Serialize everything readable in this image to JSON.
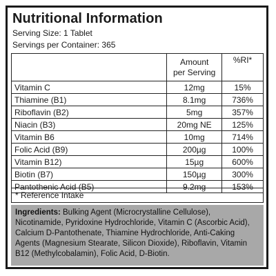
{
  "title": "Nutritional Information",
  "serving_size": "Serving Size: 1 Tablet",
  "servings_per_container": "Servings per Container: 365",
  "table": {
    "headers": {
      "amount_line1": "Amount",
      "amount_line2": "per Serving",
      "ri": "%RI*"
    },
    "rows": [
      {
        "name": "Vitamin C",
        "amount": "12mg",
        "ri": "15%"
      },
      {
        "name": "Thiamine (B1)",
        "amount": "8.1mg",
        "ri": "736%"
      },
      {
        "name": "Riboflavin (B2)",
        "amount": "5mg",
        "ri": "357%"
      },
      {
        "name": "Niacin (B3)",
        "amount": "20mg NE",
        "ri": "125%"
      },
      {
        "name": "Vitamin B6",
        "amount": "10mg",
        "ri": "714%"
      },
      {
        "name": "Folic Acid (B9)",
        "amount": "200µg",
        "ri": "100%"
      },
      {
        "name": "Vitamin B12)",
        "amount": "15µg",
        "ri": "600%"
      },
      {
        "name": "Biotin (B7)",
        "amount": "150µg",
        "ri": "300%"
      },
      {
        "name": "Pantothenic Acid (B5)",
        "amount": "9.2mg",
        "ri": "153%"
      }
    ]
  },
  "footnote": "* Reference Intake",
  "ingredients": {
    "label": "Ingredients:",
    "text": " Bulking Agent (Microcrystalline Cellulose), Nicotinamide, Pyridoxine Hydrochloride, Vitamin C (Ascorbic Acid), Calcium D-Pantothenate, Thiamine Hydrochloride, Anti-Caking Agents (Magnesium Stearate, Silicon Dioxide), Riboflavin, Vitamin B12 (Methylcobalamin), Folic Acid, D-Biotin."
  },
  "colors": {
    "border": "#1a1a1a",
    "ingredients_background": "#a8a8a8"
  }
}
